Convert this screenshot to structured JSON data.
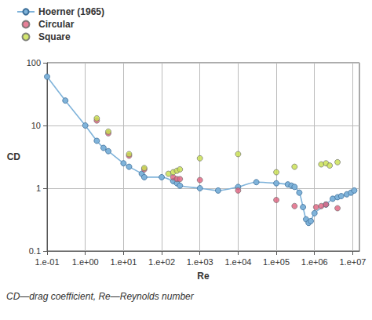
{
  "chart_data": {
    "type": "line",
    "x_label": "Re",
    "y_label": "CD",
    "annotations": [
      "CD—drag coefficient, Re—Reynolds number"
    ],
    "log": true,
    "grid": true,
    "legend": "top-left",
    "xlim": [
      0.1,
      15000000
    ],
    "ylim": [
      0.1,
      100
    ],
    "xticks": [
      {
        "value": 0.1,
        "label": "1.e-01"
      },
      {
        "value": 1,
        "label": "1.e+00"
      },
      {
        "value": 10,
        "label": "1.e+01"
      },
      {
        "value": 100,
        "label": "1.e+02"
      },
      {
        "value": 1000,
        "label": "1.e+03"
      },
      {
        "value": 10000,
        "label": "1.e+04"
      },
      {
        "value": 100000,
        "label": "1.e+05"
      },
      {
        "value": 1000000,
        "label": "1.e+06"
      },
      {
        "value": 10000000,
        "label": "1.e+07"
      }
    ],
    "yticks": [
      0.1,
      1,
      10,
      100
    ],
    "series": [
      {
        "name": "Hoerner (1965)",
        "type": "line",
        "marker": "circle",
        "line_style": "solid",
        "color": "#7fb3da",
        "x": [
          0.1,
          0.3,
          1,
          2,
          3,
          4,
          10,
          14,
          30,
          35,
          100,
          200,
          250,
          300,
          1000,
          3000,
          10000,
          30000,
          100000,
          200000,
          250000,
          300000,
          400000,
          500000,
          600000,
          700000,
          800000,
          1000000,
          2000000,
          3000000,
          4000000,
          5000000,
          7000000,
          9000000,
          11000000
        ],
        "values": [
          60,
          25,
          10,
          5.7,
          4.4,
          3.9,
          2.5,
          2.2,
          1.7,
          1.5,
          1.5,
          1.3,
          1.2,
          1.1,
          1.0,
          0.92,
          1.05,
          1.25,
          1.2,
          1.15,
          1.1,
          1.05,
          0.85,
          0.5,
          0.32,
          0.28,
          0.3,
          0.4,
          0.55,
          0.68,
          0.72,
          0.75,
          0.8,
          0.85,
          0.92
        ]
      },
      {
        "name": "Circular",
        "type": "scatter",
        "marker": "circle",
        "color": "#e0607e",
        "x": [
          2,
          4,
          14,
          35,
          200,
          250,
          300,
          1000,
          10000,
          100000,
          300000,
          1100000,
          1500000,
          2000000,
          4000000
        ],
        "values": [
          12,
          7.5,
          3.3,
          2.0,
          1.5,
          1.4,
          1.4,
          1.35,
          0.92,
          0.65,
          0.52,
          0.5,
          0.52,
          0.55,
          0.48
        ]
      },
      {
        "name": "Square",
        "type": "scatter",
        "marker": "circle",
        "color": "#c8e04c",
        "x": [
          2,
          4,
          14,
          35,
          150,
          200,
          250,
          300,
          1000,
          10000,
          100000,
          300000,
          1500000,
          2000000,
          2500000,
          4000000
        ],
        "values": [
          13,
          8,
          3.5,
          2.1,
          1.7,
          1.8,
          1.9,
          2.0,
          3.0,
          3.5,
          1.8,
          2.2,
          2.4,
          2.5,
          2.3,
          2.6
        ]
      }
    ]
  }
}
